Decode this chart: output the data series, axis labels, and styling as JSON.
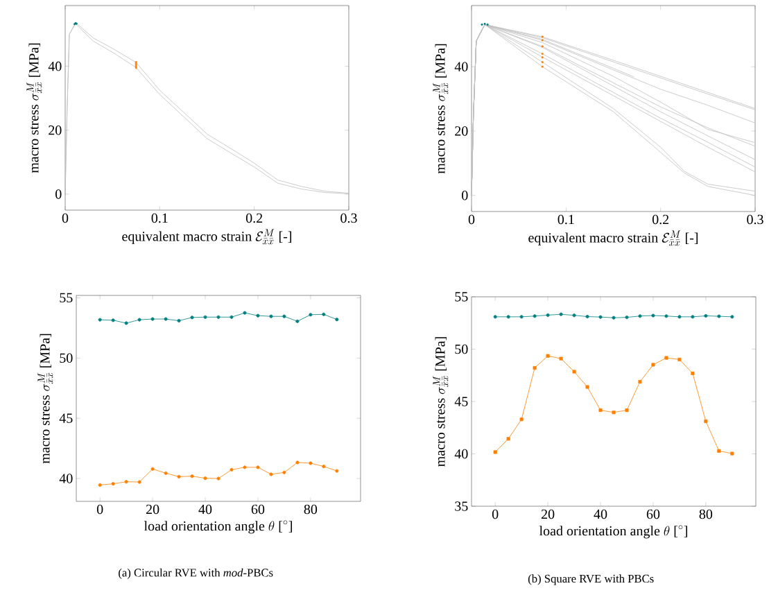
{
  "chart_data": [
    {
      "type": "line",
      "xlabel": "\\mbox{equivalent macro strain }\\mathcal{E}^{M}_{\\bar{x}\\bar{x}}\\mbox{ [-]}",
      "ylabel": "\\mbox{macro stress }\\sigma^{M}_{\\bar{x}\\bar{x}}\\mbox{ [MPa]}",
      "xlim": [
        0,
        0.3
      ],
      "ylim": [
        -5,
        59
      ],
      "xticks": [
        0,
        0.1,
        0.2,
        0.3
      ],
      "yticks": [
        0,
        20,
        40
      ],
      "series": [
        {
          "color": "#bfbfbf",
          "x": [
            0,
            0.002,
            0.0044,
            0.011,
            0.03,
            0.05,
            0.075,
            0.1,
            0.125,
            0.15,
            0.175,
            0.2,
            0.225,
            0.25,
            0.275,
            0.3
          ],
          "values": [
            0,
            26,
            50,
            53.7,
            48.8,
            45.6,
            41.2,
            32.5,
            25.7,
            18.8,
            14.3,
            9.7,
            4.4,
            2.4,
            0.9,
            0.3
          ]
        },
        {
          "color": "#bfbfbf",
          "x": [
            0,
            0.002,
            0.0044,
            0.011,
            0.03,
            0.05,
            0.075,
            0.1,
            0.125,
            0.15,
            0.175,
            0.2,
            0.225,
            0.25,
            0.275,
            0.3
          ],
          "values": [
            0,
            26,
            50,
            53.3,
            47.8,
            44.4,
            39.6,
            31.2,
            24.3,
            17.4,
            12.9,
            8.5,
            3.4,
            1.6,
            0.5,
            0.1
          ]
        },
        {
          "type": "scatter",
          "marker": "circle",
          "color": "#008080",
          "x": [
            0.01,
            0.011,
            0.012
          ],
          "values": [
            53.2,
            53.5,
            53.3
          ]
        },
        {
          "type": "scatter",
          "marker": "circle",
          "color": "#ff8000",
          "x": [
            0.075,
            0.075,
            0.075,
            0.075,
            0.075
          ],
          "values": [
            39.5,
            40.0,
            40.4,
            40.9,
            41.3
          ]
        }
      ]
    },
    {
      "type": "line",
      "xlabel": "\\mbox{equivalent macro strain }\\mathcal{E}^{M}_{\\bar{x}\\bar{x}}\\mbox{ [-]}",
      "ylabel": "\\mbox{macro stress }\\sigma^{M}_{\\bar{x}\\bar{x}}\\mbox{ [MPa]}",
      "xlim": [
        0,
        0.3
      ],
      "ylim": [
        -5,
        59
      ],
      "xticks": [
        0,
        0.1,
        0.2,
        0.3
      ],
      "yticks": [
        0,
        20,
        40
      ],
      "series": [
        {
          "color": "#bfbfbf",
          "x": [
            0,
            0.002,
            0.005,
            0.014,
            0.075,
            0.15,
            0.2,
            0.25,
            0.3
          ],
          "values": [
            0,
            25,
            48,
            53.1,
            49.3,
            42,
            37,
            32,
            27
          ]
        },
        {
          "color": "#bfbfbf",
          "x": [
            0,
            0.002,
            0.005,
            0.014,
            0.075,
            0.15,
            0.2,
            0.25,
            0.3
          ],
          "values": [
            0,
            25,
            48,
            53.1,
            49.0,
            41.5,
            36.5,
            31.5,
            26.6
          ]
        },
        {
          "color": "#bfbfbf",
          "x": [
            0,
            0.002,
            0.005,
            0.014,
            0.075,
            0.15,
            0.172
          ],
          "values": [
            0,
            25,
            48,
            53.1,
            48.5,
            39.5,
            36.8
          ]
        },
        {
          "color": "#bfbfbf",
          "x": [
            0,
            0.002,
            0.005,
            0.014,
            0.075,
            0.15,
            0.2,
            0.25,
            0.3
          ],
          "values": [
            0,
            25,
            48,
            53.1,
            48.2,
            39,
            33,
            28,
            22.5
          ]
        },
        {
          "color": "#bfbfbf",
          "x": [
            0,
            0.002,
            0.005,
            0.014,
            0.075,
            0.15,
            0.2,
            0.25,
            0.3
          ],
          "values": [
            0,
            25,
            48,
            53.1,
            47.5,
            37,
            29,
            20.5,
            16.4
          ]
        },
        {
          "color": "#bfbfbf",
          "x": [
            0,
            0.002,
            0.005,
            0.014,
            0.075,
            0.15,
            0.2,
            0.25,
            0.3
          ],
          "values": [
            0,
            25,
            48,
            53.1,
            46.3,
            35,
            27.5,
            21,
            15.3
          ]
        },
        {
          "color": "#bfbfbf",
          "x": [
            0,
            0.002,
            0.005,
            0.014,
            0.075,
            0.15,
            0.2,
            0.25,
            0.3
          ],
          "values": [
            0,
            25,
            48,
            53.1,
            46,
            34,
            26,
            18.5,
            11.1
          ]
        },
        {
          "color": "#bfbfbf",
          "x": [
            0,
            0.002,
            0.005,
            0.014,
            0.075,
            0.15,
            0.2,
            0.25,
            0.3
          ],
          "values": [
            0,
            25,
            48,
            53.1,
            44,
            32,
            24,
            16.5,
            8.8
          ]
        },
        {
          "color": "#bfbfbf",
          "x": [
            0,
            0.002,
            0.005,
            0.014,
            0.075,
            0.15,
            0.2,
            0.25,
            0.3
          ],
          "values": [
            0,
            25,
            48,
            53.1,
            43,
            31,
            23,
            15,
            7.3
          ]
        },
        {
          "color": "#bfbfbf",
          "x": [
            0,
            0.002,
            0.005,
            0.014,
            0.075,
            0.15,
            0.2,
            0.225,
            0.25,
            0.3
          ],
          "values": [
            0,
            25,
            48,
            53.1,
            41.4,
            27,
            15,
            7.5,
            3.5,
            1.3
          ]
        },
        {
          "color": "#bfbfbf",
          "x": [
            0,
            0.002,
            0.005,
            0.014,
            0.075,
            0.15,
            0.2,
            0.225,
            0.25,
            0.3
          ],
          "values": [
            0,
            25,
            48,
            53.1,
            40,
            26,
            13.4,
            7,
            2.8,
            0
          ]
        },
        {
          "type": "scatter",
          "marker": "circle",
          "color": "#008080",
          "x": [
            0.011,
            0.014,
            0.017
          ],
          "values": [
            53.1,
            53.3,
            53.1
          ]
        },
        {
          "type": "scatter",
          "marker": "circle",
          "color": "#ff8000",
          "x": [
            0.075,
            0.075,
            0.075,
            0.075,
            0.075,
            0.075,
            0.075
          ],
          "values": [
            49.3,
            48.2,
            46.3,
            44,
            42.9,
            41.4,
            40
          ]
        }
      ]
    },
    {
      "type": "line",
      "xlabel": "\\mbox{load orientation angle }\\theta\\mbox{ [}^{\\circ}\\mbox{]}",
      "ylabel": "\\mbox{macro stress }\\sigma^{M}_{\\bar{x}\\bar{x}}\\mbox{ [MPa]}",
      "xlim": [
        -9,
        99
      ],
      "ylim": [
        38.1,
        55.2
      ],
      "xticks": [
        0,
        20,
        40,
        60,
        80
      ],
      "yticks": [
        40,
        45,
        50,
        55
      ],
      "annotations": [
        "(a) Circular RVE with *mod*-PBCs"
      ],
      "series": [
        {
          "color": "#008080",
          "marker": "circle",
          "x": [
            0,
            5,
            10,
            15,
            20,
            25,
            30,
            35,
            40,
            45,
            50,
            55,
            60,
            65,
            70,
            75,
            80,
            85,
            90
          ],
          "values": [
            53.18,
            53.14,
            52.9,
            53.18,
            53.24,
            53.24,
            53.1,
            53.37,
            53.4,
            53.4,
            53.4,
            53.75,
            53.52,
            53.46,
            53.46,
            53.05,
            53.6,
            53.63,
            53.2
          ]
        },
        {
          "color": "#ff8000",
          "marker": "circle",
          "x": [
            0,
            5,
            10,
            15,
            20,
            25,
            30,
            35,
            40,
            45,
            50,
            55,
            60,
            65,
            70,
            75,
            80,
            85,
            90
          ],
          "values": [
            39.46,
            39.56,
            39.73,
            39.71,
            40.79,
            40.44,
            40.15,
            40.19,
            40.02,
            40.0,
            40.73,
            40.93,
            40.93,
            40.35,
            40.5,
            41.33,
            41.27,
            41.0,
            40.63
          ]
        }
      ]
    },
    {
      "type": "line",
      "xlabel": "\\mbox{load orientation angle }\\theta\\mbox{ [}^{\\circ}\\mbox{]}",
      "ylabel": "\\mbox{macro stress }\\sigma^{M}_{\\bar{x}\\bar{x}}\\mbox{ [MPa]}",
      "xlim": [
        -9,
        99
      ],
      "ylim": [
        35,
        55
      ],
      "xticks": [
        0,
        20,
        40,
        60,
        80
      ],
      "yticks": [
        35,
        40,
        45,
        50,
        55
      ],
      "annotations": [
        "(b) Square RVE with PBCs"
      ],
      "series": [
        {
          "color": "#008080",
          "marker": "circle",
          "x": [
            0,
            5,
            10,
            15,
            20,
            25,
            30,
            35,
            40,
            45,
            50,
            55,
            60,
            65,
            70,
            75,
            80,
            85,
            90
          ],
          "values": [
            53.09,
            53.09,
            53.09,
            53.16,
            53.25,
            53.33,
            53.23,
            53.11,
            53.07,
            53.0,
            53.04,
            53.16,
            53.21,
            53.16,
            53.09,
            53.09,
            53.18,
            53.14,
            53.09
          ]
        },
        {
          "color": "#ff8000",
          "marker": "square",
          "x": [
            0,
            5,
            10,
            15,
            20,
            25,
            30,
            35,
            40,
            45,
            50,
            55,
            60,
            65,
            70,
            75,
            80,
            85,
            90
          ],
          "values": [
            40.17,
            41.44,
            43.3,
            48.21,
            49.36,
            49.1,
            47.85,
            46.39,
            44.17,
            43.96,
            44.17,
            46.89,
            48.51,
            49.17,
            49.01,
            47.69,
            43.11,
            40.28,
            40.03
          ]
        }
      ]
    }
  ]
}
